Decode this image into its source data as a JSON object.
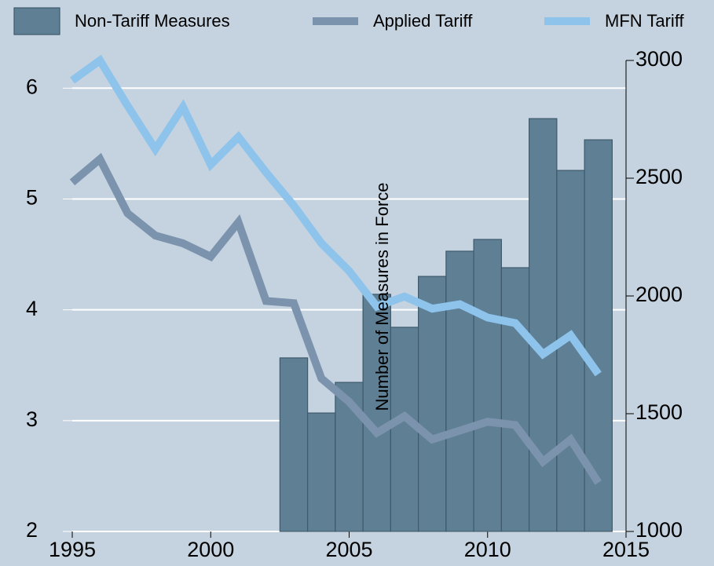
{
  "chart_data": {
    "type": "combo",
    "y2_axis_label": "Number of Measures in Force",
    "x": [
      1995,
      1996,
      1997,
      1998,
      1999,
      2000,
      2001,
      2002,
      2003,
      2004,
      2005,
      2006,
      2007,
      2008,
      2009,
      2010,
      2011,
      2012,
      2013,
      2014
    ],
    "xlim": [
      1995,
      2015
    ],
    "xticks": [
      1995,
      2000,
      2005,
      2010,
      2015
    ],
    "ylim": [
      2,
      6.25
    ],
    "yticks": [
      2,
      3,
      4,
      5,
      6
    ],
    "y2lim": [
      1000,
      3000
    ],
    "y2ticks": [
      1000,
      1500,
      2000,
      2500,
      3000
    ],
    "grid": true,
    "legend": "top",
    "series": [
      {
        "name": "Non-Tariff Measures",
        "type": "bar",
        "axis": "y2",
        "color": "#5f7f95",
        "values": [
          null,
          null,
          null,
          null,
          null,
          null,
          null,
          null,
          1737,
          1503,
          1633,
          2007,
          1867,
          2083,
          2190,
          2240,
          2120,
          2753,
          2533,
          2663
        ]
      },
      {
        "name": "Applied Tariff",
        "type": "line",
        "axis": "y",
        "color": "#7c93ad",
        "values": [
          5.15,
          5.36,
          4.87,
          4.67,
          4.6,
          4.48,
          4.79,
          4.08,
          4.06,
          3.38,
          3.17,
          2.89,
          3.04,
          2.83,
          2.91,
          2.99,
          2.96,
          2.63,
          2.83,
          2.44
        ]
      },
      {
        "name": "MFN Tariff",
        "type": "line",
        "axis": "y",
        "color": "#8ec4eb",
        "values": [
          6.07,
          6.25,
          5.84,
          5.45,
          5.83,
          5.31,
          5.56,
          5.24,
          4.94,
          4.6,
          4.35,
          4.03,
          4.12,
          4.01,
          4.05,
          3.93,
          3.88,
          3.6,
          3.77,
          3.42
        ]
      }
    ]
  }
}
